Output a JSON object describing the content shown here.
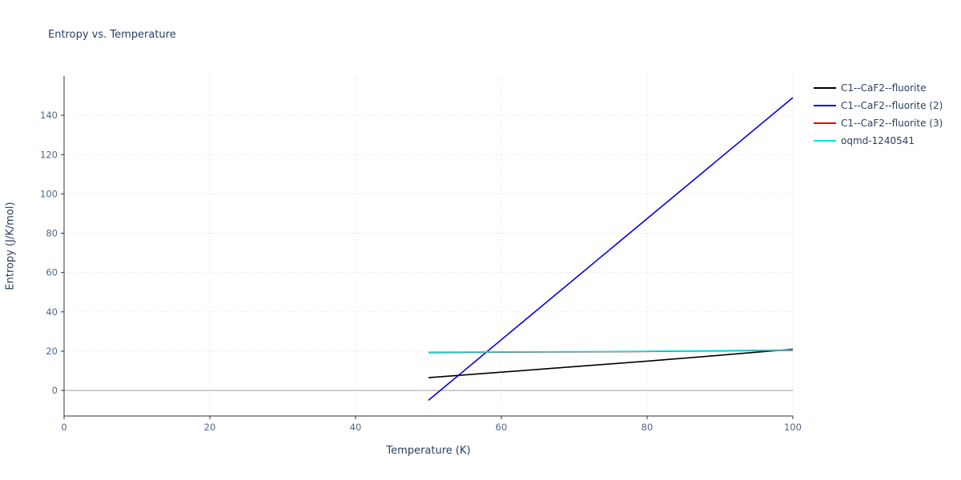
{
  "title": "Entropy vs. Temperature",
  "chart_data": {
    "type": "line",
    "title": "Entropy vs. Temperature",
    "xlabel": "Temperature (K)",
    "ylabel": "Entropy (J/K/mol)",
    "xlim": [
      0,
      100
    ],
    "ylim": [
      -13,
      160
    ],
    "xticks": [
      0,
      20,
      40,
      60,
      80,
      100
    ],
    "yticks": [
      0,
      20,
      40,
      60,
      80,
      100,
      120,
      140
    ],
    "grid": true,
    "zero_line": true,
    "legend_position": "top-right-outside",
    "colors": {
      "text": "#2a3f5f",
      "tick_text": "#506784",
      "grid": "#d9d9d9",
      "zero_line": "#b8b8b8",
      "axis": "#333333"
    },
    "series": [
      {
        "name": "C1--CaF2--fluorite",
        "color": "#000000",
        "x": [
          50,
          60,
          70,
          80,
          90,
          100
        ],
        "y": [
          6.5,
          9.3,
          12.1,
          14.9,
          17.9,
          21.0
        ]
      },
      {
        "name": "C1--CaF2--fluorite (2)",
        "color": "#0000ee",
        "x": [
          50,
          100
        ],
        "y": [
          -5,
          149
        ]
      },
      {
        "name": "C1--CaF2--fluorite (3)",
        "color": "#ee0000",
        "x": [
          50,
          75,
          100
        ],
        "y": [
          19.3,
          19.7,
          20.4
        ]
      },
      {
        "name": "oqmd-1240541",
        "color": "#00e5e5",
        "x": [
          50,
          75,
          100
        ],
        "y": [
          19.5,
          19.8,
          20.6
        ]
      }
    ]
  }
}
